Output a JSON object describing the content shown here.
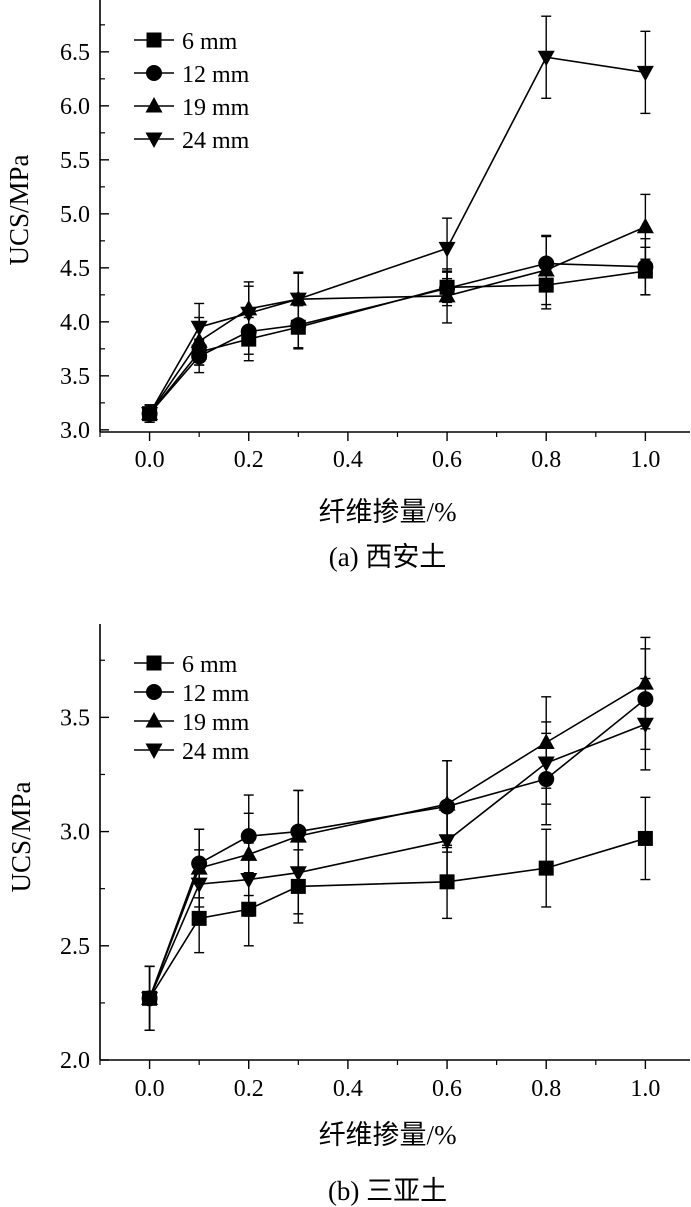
{
  "chart_data": [
    {
      "type": "line",
      "caption": "(a) 西安土",
      "xlabel": "纤维掺量/%",
      "ylabel": "UCS/MPa",
      "xlim": [
        -0.1,
        1.09
      ],
      "ylim": [
        2.98,
        6.98
      ],
      "xticks": [
        0.0,
        0.2,
        0.4,
        0.6,
        0.8,
        1.0
      ],
      "xtick_labels": [
        "0.0",
        "0.2",
        "0.4",
        "0.6",
        "0.8",
        "1.0"
      ],
      "yticks": [
        3.0,
        3.5,
        4.0,
        4.5,
        5.0,
        5.5,
        6.0,
        6.5
      ],
      "ytick_labels": [
        "3.0",
        "3.5",
        "4.0",
        "4.5",
        "5.0",
        "5.5",
        "6.0",
        "6.5"
      ],
      "legend_position": "top-left",
      "x": [
        0.0,
        0.1,
        0.2,
        0.3,
        0.6,
        0.8,
        1.0
      ],
      "series": [
        {
          "name": "6 mm",
          "marker": "square",
          "values": [
            3.15,
            3.72,
            3.84,
            3.95,
            4.32,
            4.34,
            4.47
          ],
          "errors": [
            0.08,
            0.12,
            0.2,
            0.2,
            0.14,
            0.22,
            0.22
          ]
        },
        {
          "name": "12 mm",
          "marker": "circle",
          "values": [
            3.15,
            3.68,
            3.91,
            3.97,
            4.31,
            4.54,
            4.51
          ],
          "errors": [
            0.08,
            0.15,
            0.21,
            0.21,
            0.16,
            0.25,
            0.26
          ]
        },
        {
          "name": "19 mm",
          "marker": "triangle-up",
          "values": [
            3.15,
            3.82,
            4.12,
            4.21,
            4.24,
            4.48,
            4.88
          ],
          "errors": [
            0.08,
            0.22,
            0.25,
            0.24,
            0.25,
            0.32,
            0.3
          ]
        },
        {
          "name": "24 mm",
          "marker": "triangle-down",
          "values": [
            3.15,
            3.95,
            4.08,
            4.21,
            4.68,
            6.45,
            6.31
          ],
          "errors": [
            0.08,
            0.22,
            0.25,
            0.25,
            0.28,
            0.38,
            0.38
          ]
        }
      ]
    },
    {
      "type": "line",
      "caption": "(b) 三亚土",
      "xlabel": "纤维掺量/%",
      "ylabel": "UCS/MPa",
      "xlim": [
        -0.1,
        1.09
      ],
      "ylim": [
        2.0,
        3.9
      ],
      "xticks": [
        0.0,
        0.2,
        0.4,
        0.6,
        0.8,
        1.0
      ],
      "xtick_labels": [
        "0.0",
        "0.2",
        "0.4",
        "0.6",
        "0.8",
        "1.0"
      ],
      "yticks": [
        2.0,
        2.5,
        3.0,
        3.5
      ],
      "ytick_labels": [
        "2.0",
        "2.5",
        "3.0",
        "3.5"
      ],
      "legend_position": "top-left",
      "x": [
        0.0,
        0.1,
        0.2,
        0.3,
        0.6,
        0.8,
        1.0
      ],
      "series": [
        {
          "name": "6 mm",
          "marker": "square",
          "values": [
            2.27,
            2.62,
            2.66,
            2.76,
            2.78,
            2.84,
            2.97
          ],
          "errors": [
            0.14,
            0.15,
            0.16,
            0.16,
            0.16,
            0.17,
            0.18
          ]
        },
        {
          "name": "12 mm",
          "marker": "circle",
          "values": [
            2.27,
            2.86,
            2.98,
            3.0,
            3.11,
            3.23,
            3.58
          ],
          "errors": [
            0.14,
            0.15,
            0.18,
            0.18,
            0.2,
            0.2,
            0.22
          ]
        },
        {
          "name": "19 mm",
          "marker": "triangle-up",
          "values": [
            2.27,
            2.84,
            2.9,
            2.98,
            3.12,
            3.39,
            3.65
          ],
          "errors": [
            0.14,
            0.17,
            0.18,
            0.2,
            0.19,
            0.2,
            0.2
          ]
        },
        {
          "name": "24 mm",
          "marker": "triangle-down",
          "values": [
            2.27,
            2.77,
            2.79,
            2.82,
            2.96,
            3.3,
            3.47
          ],
          "errors": [
            0.14,
            0.15,
            0.16,
            0.18,
            0.16,
            0.18,
            0.2
          ]
        }
      ]
    }
  ]
}
